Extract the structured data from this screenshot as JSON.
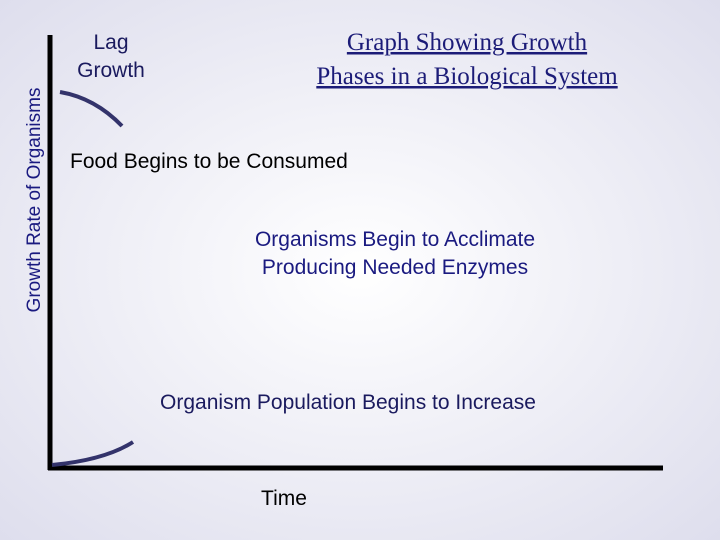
{
  "title": [
    "Graph  Showing Growth",
    "Phases in a Biological System"
  ],
  "y_axis_label": "Growth Rate of Organisms",
  "x_axis_label": "Time",
  "lag_label": [
    "Lag",
    "Growth"
  ],
  "annotations": {
    "food": "Food Begins to be Consumed",
    "acclimate": [
      "Organisms Begin to Acclimate",
      "Producing Needed Enzymes"
    ],
    "increase": "Organism Population Begins to Increase"
  }
}
